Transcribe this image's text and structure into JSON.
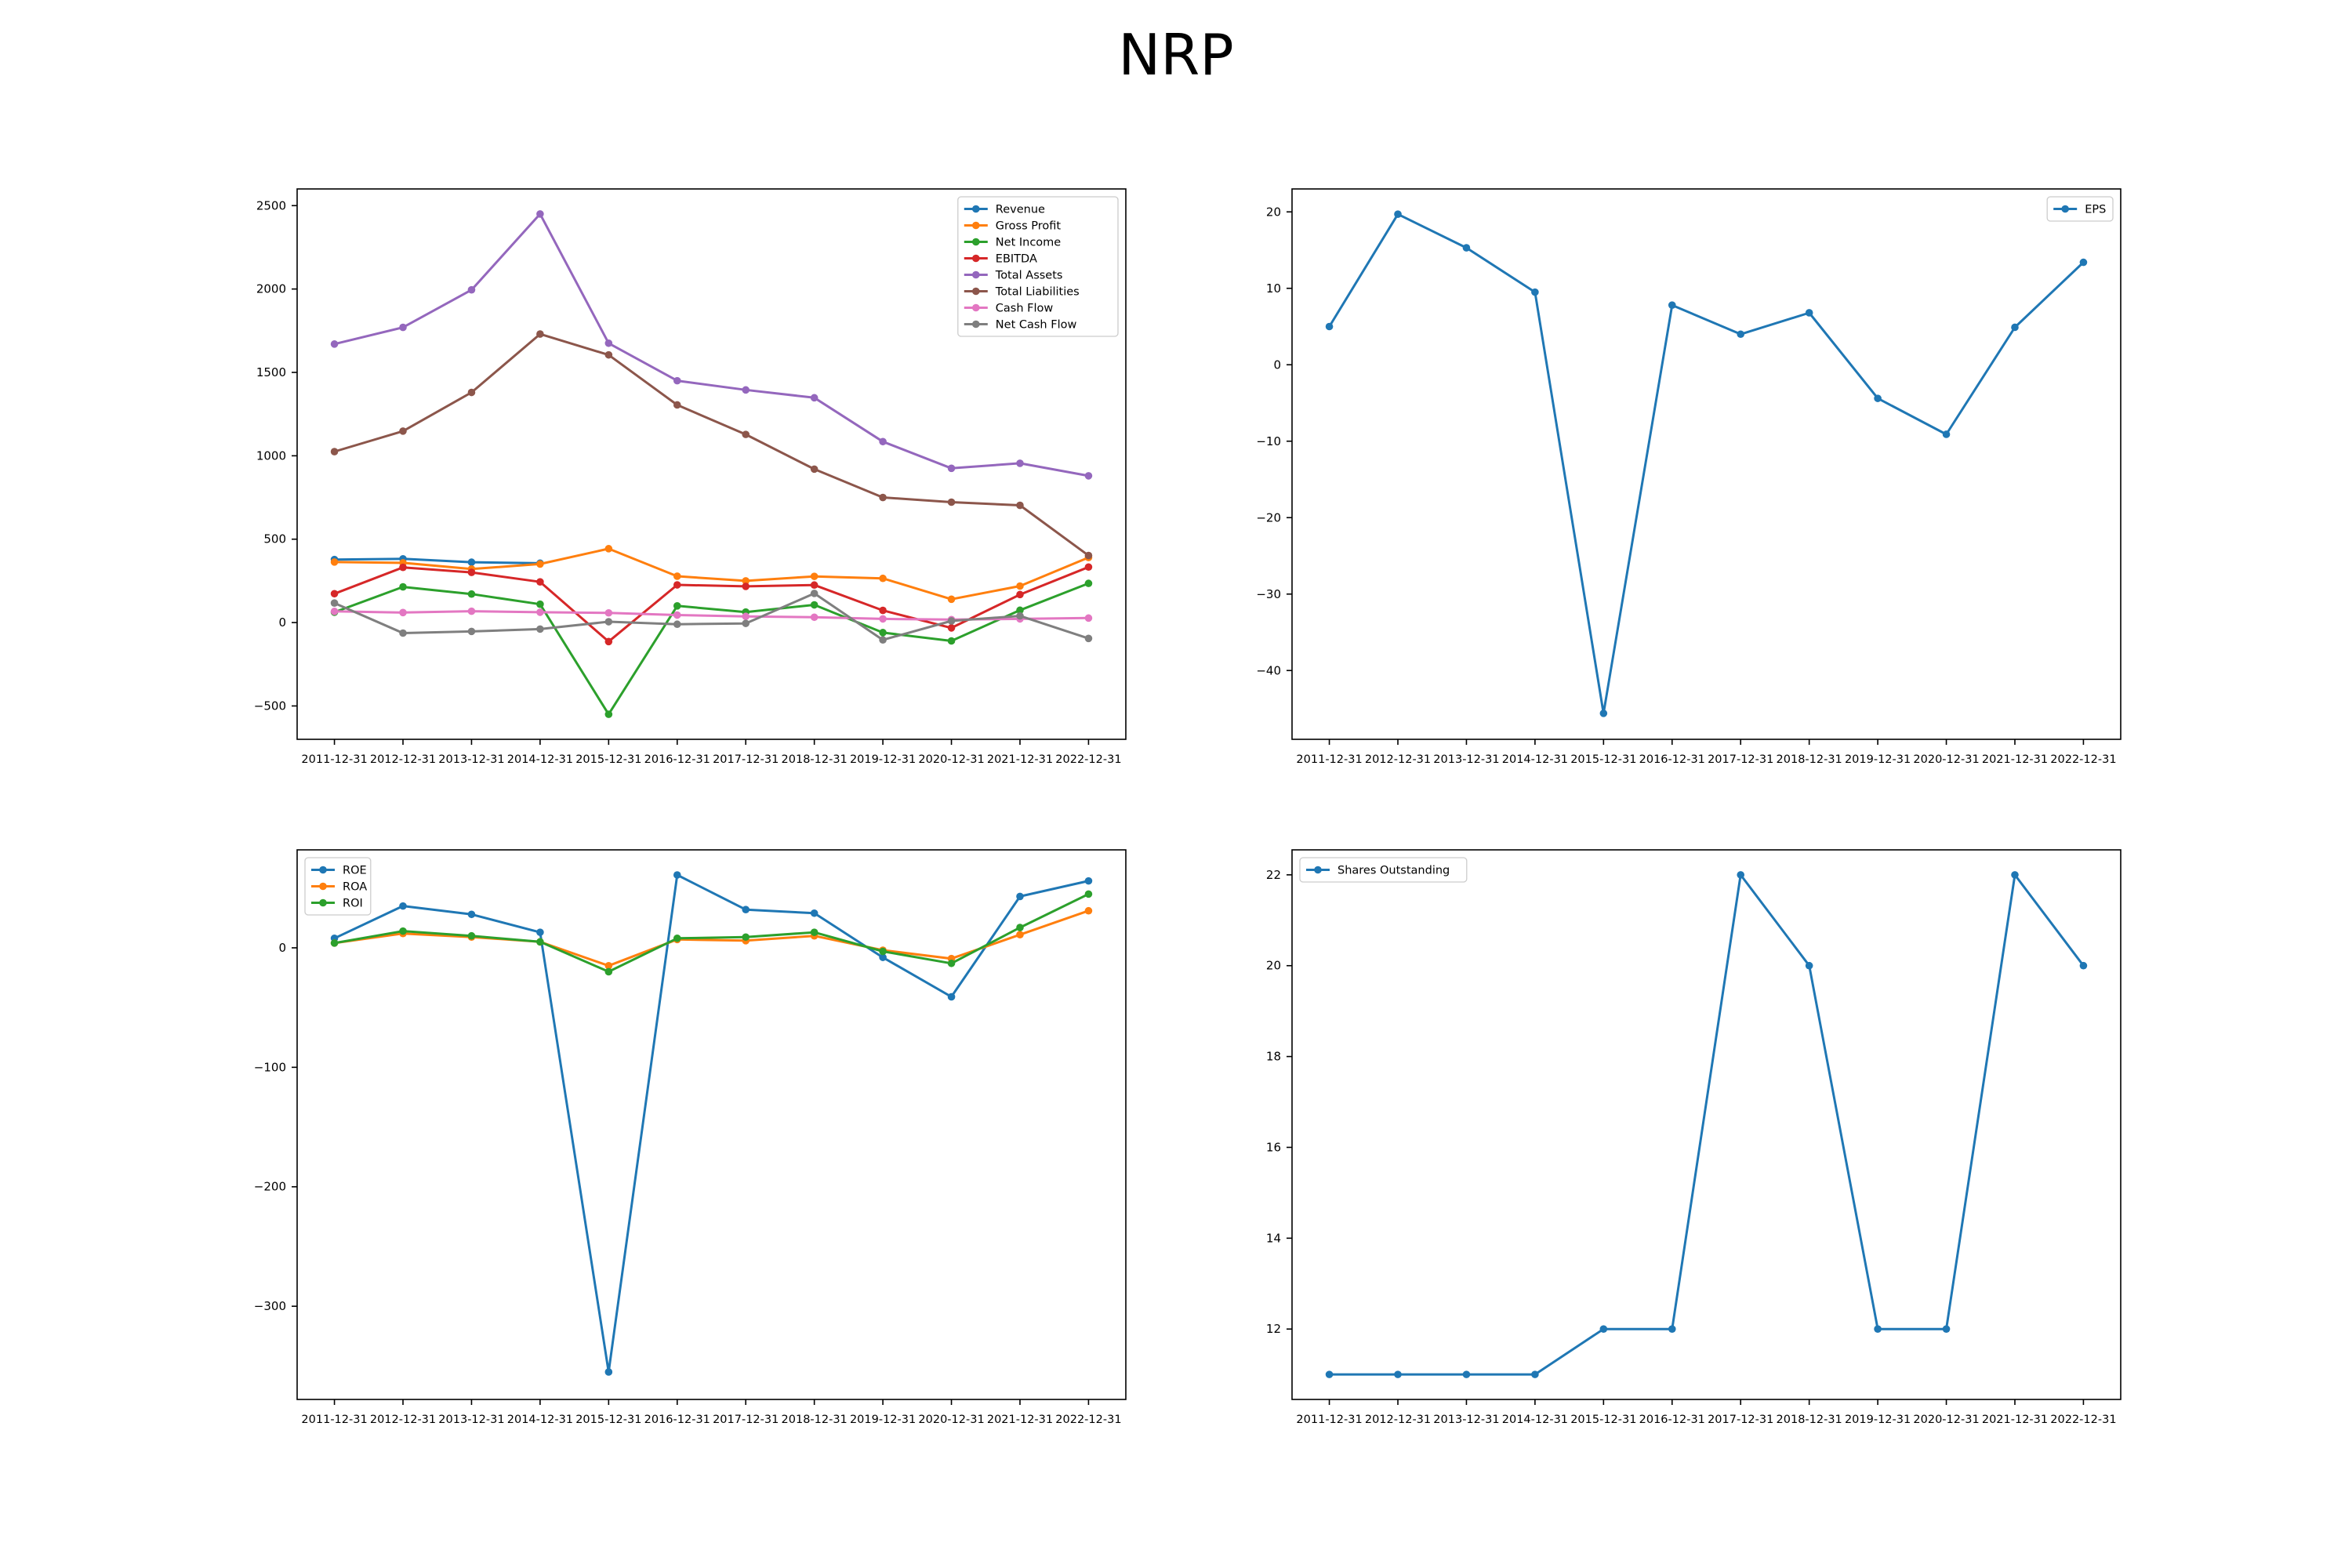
{
  "title": "NRP",
  "chart_data": [
    {
      "type": "line",
      "x": [
        "2011-12-31",
        "2012-12-31",
        "2013-12-31",
        "2014-12-31",
        "2015-12-31",
        "2016-12-31",
        "2017-12-31",
        "2018-12-31",
        "2019-12-31",
        "2020-12-31",
        "2021-12-31",
        "2022-12-31"
      ],
      "ylim": [
        -700,
        2600
      ],
      "yticks": [
        -500,
        0,
        500,
        1000,
        1500,
        2000,
        2500
      ],
      "legend": "top-right",
      "grid": false,
      "series": [
        {
          "name": "Revenue",
          "color": "#1f77b4",
          "values": [
            378,
            382,
            362,
            356,
            null,
            null,
            null,
            null,
            null,
            null,
            null,
            null
          ]
        },
        {
          "name": "Gross Profit",
          "color": "#ff7f0e",
          "values": [
            363,
            358,
            321,
            351,
            443,
            278,
            250,
            277,
            265,
            140,
            219,
            390
          ]
        },
        {
          "name": "Net Income",
          "color": "#2ca02c",
          "values": [
            62,
            214,
            171,
            110,
            -550,
            100,
            63,
            106,
            -60,
            -110,
            74,
            235
          ]
        },
        {
          "name": "EBITDA",
          "color": "#d62728",
          "values": [
            173,
            331,
            301,
            244,
            -114,
            226,
            217,
            225,
            73,
            -32,
            168,
            333
          ]
        },
        {
          "name": "Total Assets",
          "color": "#9467bd",
          "values": [
            1670,
            1770,
            1995,
            2450,
            1675,
            1450,
            1395,
            1348,
            1085,
            925,
            955,
            880
          ]
        },
        {
          "name": "Total Liabilities",
          "color": "#8c564b",
          "values": [
            1025,
            1148,
            1380,
            1730,
            1605,
            1305,
            1128,
            920,
            750,
            722,
            703,
            402
          ]
        },
        {
          "name": "Cash Flow",
          "color": "#e377c2",
          "values": [
            67,
            60,
            68,
            62,
            58,
            45,
            37,
            32,
            22,
            18,
            22,
            27
          ]
        },
        {
          "name": "Net Cash Flow",
          "color": "#7f7f7f",
          "values": [
            117,
            -63,
            -53,
            -39,
            5,
            -10,
            -5,
            175,
            -104,
            10,
            40,
            -95
          ]
        }
      ]
    },
    {
      "type": "line",
      "x": [
        "2011-12-31",
        "2012-12-31",
        "2013-12-31",
        "2014-12-31",
        "2015-12-31",
        "2016-12-31",
        "2017-12-31",
        "2018-12-31",
        "2019-12-31",
        "2020-12-31",
        "2021-12-31",
        "2022-12-31"
      ],
      "ylim": [
        -49,
        23
      ],
      "yticks": [
        -40,
        -30,
        -20,
        -10,
        0,
        10,
        20
      ],
      "legend": "top-right",
      "grid": false,
      "series": [
        {
          "name": "EPS",
          "color": "#1f77b4",
          "values": [
            5.0,
            19.7,
            15.3,
            9.5,
            -45.6,
            7.8,
            4.0,
            6.8,
            -4.4,
            -9.1,
            4.9,
            13.4
          ]
        }
      ]
    },
    {
      "type": "line",
      "x": [
        "2011-12-31",
        "2012-12-31",
        "2013-12-31",
        "2014-12-31",
        "2015-12-31",
        "2016-12-31",
        "2017-12-31",
        "2018-12-31",
        "2019-12-31",
        "2020-12-31",
        "2021-12-31",
        "2022-12-31"
      ],
      "ylim": [
        -378,
        82
      ],
      "yticks": [
        -300,
        -200,
        -100,
        0
      ],
      "legend": "top-left",
      "grid": false,
      "series": [
        {
          "name": "ROE",
          "color": "#1f77b4",
          "values": [
            8,
            35,
            28,
            13,
            -355,
            61,
            32,
            29,
            -8,
            -41,
            43,
            56
          ]
        },
        {
          "name": "ROA",
          "color": "#ff7f0e",
          "values": [
            4,
            12,
            9,
            5,
            -15,
            7,
            6,
            10,
            -2,
            -9,
            11,
            31
          ]
        },
        {
          "name": "ROI",
          "color": "#2ca02c",
          "values": [
            4,
            14,
            10,
            5,
            -20,
            8,
            9,
            13,
            -3,
            -13,
            17,
            45
          ]
        }
      ]
    },
    {
      "type": "line",
      "x": [
        "2011-12-31",
        "2012-12-31",
        "2013-12-31",
        "2014-12-31",
        "2015-12-31",
        "2016-12-31",
        "2017-12-31",
        "2018-12-31",
        "2019-12-31",
        "2020-12-31",
        "2021-12-31",
        "2022-12-31"
      ],
      "ylim": [
        10.45,
        22.55
      ],
      "yticks": [
        12,
        14,
        16,
        18,
        20,
        22
      ],
      "legend": "top-left",
      "grid": false,
      "series": [
        {
          "name": "Shares Outstanding",
          "color": "#1f77b4",
          "values": [
            11,
            11,
            11,
            11,
            12,
            12,
            22,
            20,
            12,
            12,
            22,
            20
          ]
        }
      ]
    }
  ]
}
